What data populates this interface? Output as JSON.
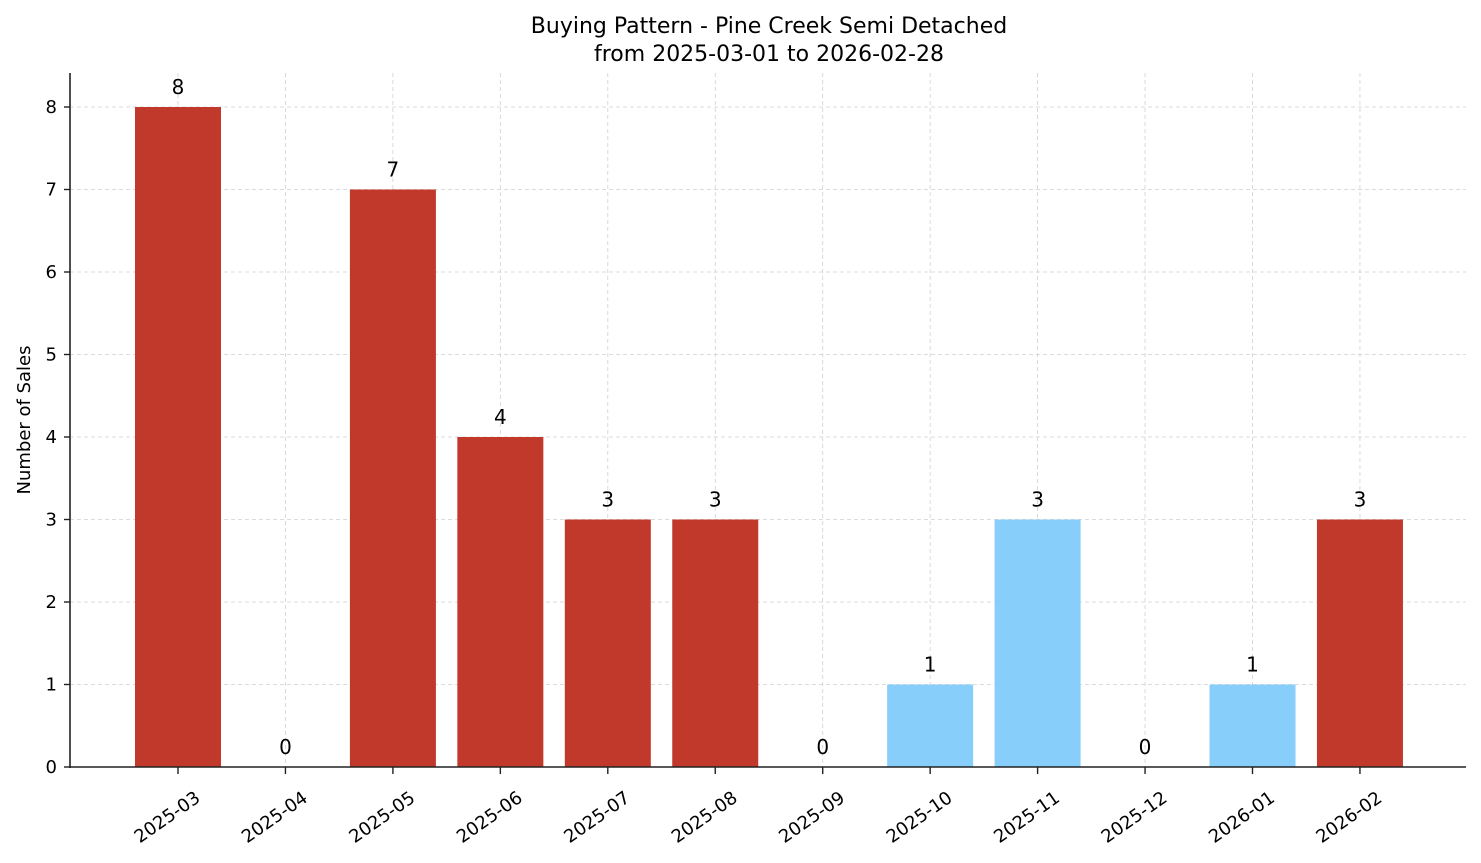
{
  "chart_data": {
    "type": "bar",
    "title": "Buying Pattern - Pine Creek Semi Detached",
    "subtitle": "from 2025-03-01 to 2026-02-28",
    "xlabel": "",
    "ylabel": "Number of Sales",
    "categories": [
      "2025-03",
      "2025-04",
      "2025-05",
      "2025-06",
      "2025-07",
      "2025-08",
      "2025-09",
      "2025-10",
      "2025-11",
      "2025-12",
      "2026-01",
      "2026-02"
    ],
    "values": [
      8,
      0,
      7,
      4,
      3,
      3,
      0,
      1,
      3,
      0,
      1,
      3
    ],
    "bar_colors": [
      "#c0392b",
      "#c0392b",
      "#c0392b",
      "#c0392b",
      "#c0392b",
      "#c0392b",
      "#87cefa",
      "#87cefa",
      "#87cefa",
      "#87cefa",
      "#87cefa",
      "#c0392b"
    ],
    "ylim": [
      0,
      8.4
    ],
    "yticks": [
      0,
      1,
      2,
      3,
      4,
      5,
      6,
      7,
      8
    ],
    "grid": true,
    "legend": null,
    "data_labels": true
  },
  "colors": {
    "high": "#c0392b",
    "low": "#87cefa",
    "grid": "#d0d0d0",
    "axis": "#222222"
  }
}
